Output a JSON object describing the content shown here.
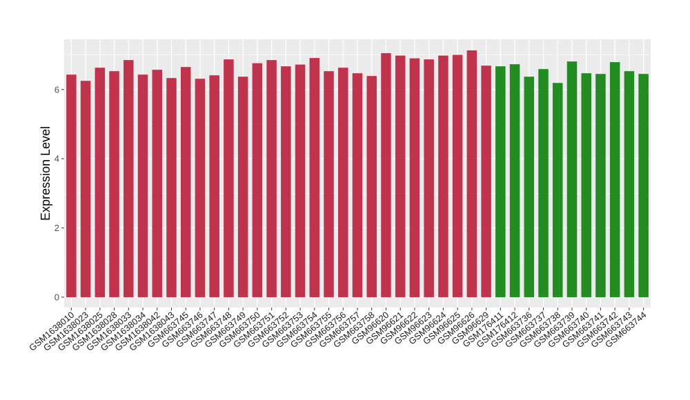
{
  "chart_data": {
    "type": "bar",
    "title": "",
    "xlabel": "",
    "ylabel": "Expression Level",
    "ylim": [
      -0.3,
      7.45
    ],
    "yticks": [
      0,
      2,
      4,
      6
    ],
    "grid": true,
    "legend": "none",
    "panel_color": "#ebebeb",
    "grid_color": "#ffffff",
    "series_colors": [
      "#c0334d",
      "#228b22"
    ],
    "categories": [
      "GSM1638010",
      "GSM1638023",
      "GSM1638025",
      "GSM1638028",
      "GSM1638033",
      "GSM1638034",
      "GSM1638042",
      "GSM1638043",
      "GSM663745",
      "GSM663746",
      "GSM663747",
      "GSM663748",
      "GSM663749",
      "GSM663750",
      "GSM663751",
      "GSM663752",
      "GSM663753",
      "GSM663754",
      "GSM663755",
      "GSM663756",
      "GSM663757",
      "GSM663758",
      "GSM96620",
      "GSM96621",
      "GSM96622",
      "GSM96623",
      "GSM96624",
      "GSM96625",
      "GSM96626",
      "GSM96629",
      "GSM176411",
      "GSM176412",
      "GSM663736",
      "GSM663737",
      "GSM663738",
      "GSM663739",
      "GSM663740",
      "GSM663741",
      "GSM663742",
      "GSM663743",
      "GSM663744"
    ],
    "values": [
      6.43,
      6.25,
      6.63,
      6.53,
      6.85,
      6.43,
      6.57,
      6.33,
      6.65,
      6.31,
      6.41,
      6.87,
      6.37,
      6.76,
      6.85,
      6.67,
      6.72,
      6.91,
      6.53,
      6.63,
      6.47,
      6.39,
      7.05,
      6.98,
      6.9,
      6.87,
      6.98,
      7.0,
      7.13,
      6.69,
      6.67,
      6.73,
      6.37,
      6.59,
      6.19,
      6.81,
      6.47,
      6.45,
      6.79,
      6.53,
      6.45
    ],
    "group": [
      0,
      0,
      0,
      0,
      0,
      0,
      0,
      0,
      0,
      0,
      0,
      0,
      0,
      0,
      0,
      0,
      0,
      0,
      0,
      0,
      0,
      0,
      0,
      0,
      0,
      0,
      0,
      0,
      0,
      0,
      1,
      1,
      1,
      1,
      1,
      1,
      1,
      1,
      1,
      1,
      1
    ]
  }
}
